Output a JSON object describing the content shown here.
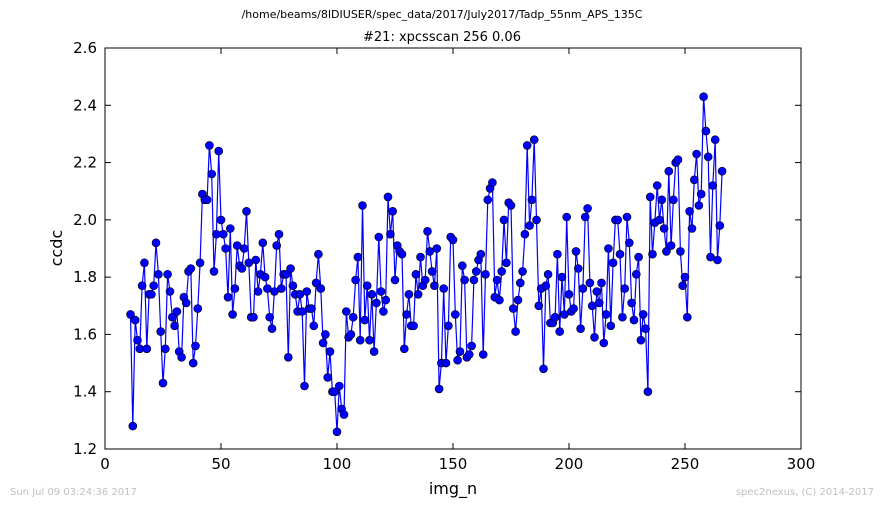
{
  "header": {
    "path": "/home/beams/8IDIUSER/spec_data/2017/July2017/Tadp_55nm_APS_135C",
    "title": "#21: xpcsscan 256 0.06"
  },
  "footer": {
    "timestamp": "Sun Jul 09 03:24:36 2017",
    "credit": "spec2nexus, (C) 2014-2017"
  },
  "chart_data": {
    "type": "line",
    "title": "#21: xpcsscan 256 0.06",
    "xlabel": "img_n",
    "ylabel": "ccdc",
    "xlim": [
      0,
      300
    ],
    "ylim": [
      1.2,
      2.6
    ],
    "xticks": [
      "0",
      "50",
      "100",
      "150",
      "200",
      "250",
      "300"
    ],
    "yticks": [
      "1.2",
      "1.4",
      "1.6",
      "1.8",
      "2.0",
      "2.2",
      "2.4",
      "2.6"
    ],
    "grid": false,
    "colors": {
      "series": "#0000ff",
      "marker": "#0000ff"
    },
    "x": [
      11,
      12,
      13,
      14,
      15,
      16,
      17,
      18,
      19,
      20,
      21,
      22,
      23,
      24,
      25,
      26,
      27,
      28,
      29,
      30,
      31,
      32,
      33,
      34,
      35,
      36,
      37,
      38,
      39,
      40,
      41,
      42,
      43,
      44,
      45,
      46,
      47,
      48,
      49,
      50,
      51,
      52,
      53,
      54,
      55,
      56,
      57,
      58,
      59,
      60,
      61,
      62,
      63,
      64,
      65,
      66,
      67,
      68,
      69,
      70,
      71,
      72,
      73,
      74,
      75,
      76,
      77,
      78,
      79,
      80,
      81,
      82,
      83,
      84,
      85,
      86,
      87,
      88,
      89,
      90,
      91,
      92,
      93,
      94,
      95,
      96,
      97,
      98,
      99,
      100,
      101,
      102,
      103,
      104,
      105,
      106,
      107,
      108,
      109,
      110,
      111,
      112,
      113,
      114,
      115,
      116,
      117,
      118,
      119,
      120,
      121,
      122,
      123,
      124,
      125,
      126,
      127,
      128,
      129,
      130,
      131,
      132,
      133,
      134,
      135,
      136,
      137,
      138,
      139,
      140,
      141,
      142,
      143,
      144,
      145,
      146,
      147,
      148,
      149,
      150,
      151,
      152,
      153,
      154,
      155,
      156,
      157,
      158,
      159,
      160,
      161,
      162,
      163,
      164,
      165,
      166,
      167,
      168,
      169,
      170,
      171,
      172,
      173,
      174,
      175,
      176,
      177,
      178,
      179,
      180,
      181,
      182,
      183,
      184,
      185,
      186,
      187,
      188,
      189,
      190,
      191,
      192,
      193,
      194,
      195,
      196,
      197,
      198,
      199,
      200,
      201,
      202,
      203,
      204,
      205,
      206,
      207,
      208,
      209,
      210,
      211,
      212,
      213,
      214,
      215,
      216,
      217,
      218,
      219,
      220,
      221,
      222,
      223,
      224,
      225,
      226,
      227,
      228,
      229,
      230,
      231,
      232,
      233,
      234,
      235,
      236,
      237,
      238,
      239,
      240,
      241,
      242,
      243,
      244,
      245,
      246,
      247,
      248,
      249,
      250,
      251,
      252,
      253,
      254,
      255,
      256,
      257,
      258,
      259,
      260,
      261,
      262,
      263,
      264,
      265,
      266
    ],
    "y": [
      1.67,
      1.28,
      1.65,
      1.58,
      1.55,
      1.77,
      1.85,
      1.55,
      1.74,
      1.74,
      1.77,
      1.92,
      1.81,
      1.61,
      1.43,
      1.55,
      1.81,
      1.75,
      1.66,
      1.63,
      1.68,
      1.54,
      1.52,
      1.73,
      1.71,
      1.82,
      1.83,
      1.5,
      1.56,
      1.69,
      1.85,
      2.09,
      2.07,
      2.07,
      2.26,
      2.16,
      1.82,
      1.95,
      2.24,
      2.0,
      1.95,
      1.9,
      1.73,
      1.97,
      1.67,
      1.76,
      1.91,
      1.84,
      1.83,
      1.9,
      2.03,
      1.85,
      1.66,
      1.66,
      1.86,
      1.75,
      1.81,
      1.92,
      1.8,
      1.76,
      1.66,
      1.62,
      1.75,
      1.91,
      1.95,
      1.76,
      1.81,
      1.81,
      1.52,
      1.83,
      1.77,
      1.74,
      1.68,
      1.74,
      1.68,
      1.42,
      1.75,
      1.69,
      1.69,
      1.63,
      1.78,
      1.88,
      1.76,
      1.57,
      1.6,
      1.45,
      1.54,
      1.4,
      1.4,
      1.26,
      1.42,
      1.34,
      1.32,
      1.68,
      1.59,
      1.6,
      1.66,
      1.79,
      1.87,
      1.58,
      2.05,
      1.65,
      1.77,
      1.58,
      1.74,
      1.54,
      1.71,
      1.94,
      1.75,
      1.68,
      1.72,
      2.08,
      1.95,
      2.03,
      1.79,
      1.91,
      1.89,
      1.88,
      1.55,
      1.67,
      1.74,
      1.63,
      1.63,
      1.81,
      1.74,
      1.87,
      1.77,
      1.79,
      1.96,
      1.89,
      1.82,
      1.77,
      1.9,
      1.41,
      1.5,
      1.76,
      1.5,
      1.63,
      1.94,
      1.93,
      1.67,
      1.51,
      1.54,
      1.84,
      1.79,
      1.52,
      1.53,
      1.56,
      1.79,
      1.82,
      1.86,
      1.88,
      1.53,
      1.81,
      2.07,
      2.11,
      2.13,
      1.73,
      1.79,
      1.72,
      1.82,
      2.0,
      1.85,
      2.06,
      2.05,
      1.69,
      1.61,
      1.72,
      1.78,
      1.82,
      1.95,
      2.26,
      1.98,
      2.07,
      2.28,
      2.0,
      1.7,
      1.76,
      1.48,
      1.77,
      1.81,
      1.64,
      1.64,
      1.66,
      1.88,
      1.61,
      1.8,
      1.67,
      2.01,
      1.74,
      1.68,
      1.69,
      1.89,
      1.83,
      1.62,
      1.76,
      2.01,
      2.04,
      1.78,
      1.7,
      1.59,
      1.75,
      1.71,
      1.78,
      1.57,
      1.67,
      1.9,
      1.63,
      1.85,
      2.0,
      2.0,
      1.88,
      1.66,
      1.76,
      2.01,
      1.92,
      1.71,
      1.65,
      1.81,
      1.87,
      1.58,
      1.67,
      1.62,
      1.4,
      2.08,
      1.88,
      1.99,
      2.12,
      2.0,
      2.07,
      1.97,
      1.89,
      2.17,
      1.91,
      2.07,
      2.2,
      2.21,
      1.89,
      1.77,
      1.8,
      1.66,
      2.03,
      1.97,
      2.14,
      2.23,
      2.05,
      2.09,
      2.43,
      2.31,
      2.22,
      1.87,
      2.12,
      2.28,
      1.86,
      1.98,
      2.17
    ]
  }
}
